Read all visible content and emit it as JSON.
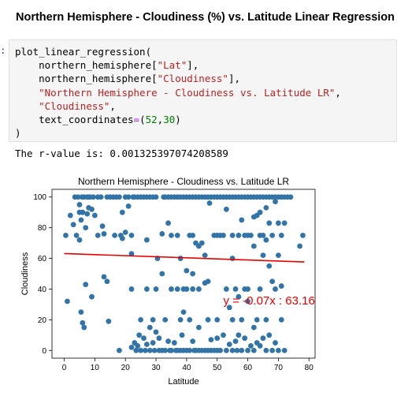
{
  "notebook": {
    "heading": "Northern Hemisphere - Cloudiness (%) vs. Latitude Linear Regression",
    "prompt": ":",
    "code": {
      "fn_call": "plot_linear_regression(",
      "arg1_prefix": "northern_hemisphere[",
      "arg1_key": "\"Lat\"",
      "arg1_suffix": "],",
      "arg2_prefix": "northern_hemisphere[",
      "arg2_key": "\"Cloudiness\"",
      "arg2_suffix": "],",
      "arg3": "\"Northern Hemisphere - Cloudiness vs. Latitude LR\"",
      "arg3_suffix": ",",
      "arg4": "\"Cloudiness\"",
      "arg4_suffix": ",",
      "arg5_name": "text_coordinates",
      "arg5_eq": "=",
      "arg5_open": "(",
      "arg5_x": "52",
      "arg5_comma": ",",
      "arg5_y": "30",
      "arg5_close": ")",
      "close": ")"
    },
    "output": "The r-value is: 0.001325397074208589"
  },
  "colors": {
    "points": "#3274a8",
    "regression": "#e60000",
    "annotation": "#e60000",
    "code_string": "#BA2121",
    "code_number": "#008000"
  },
  "chart_data": {
    "type": "scatter",
    "title": "Northern Hemisphere - Cloudiness vs. Latitude LR",
    "xlabel": "Latitude",
    "ylabel": "Cloudiness",
    "xlim": [
      -4,
      82
    ],
    "ylim": [
      -5,
      105
    ],
    "xticks": [
      0,
      10,
      20,
      30,
      40,
      50,
      60,
      70,
      80
    ],
    "yticks": [
      0,
      20,
      40,
      60,
      80,
      100
    ],
    "grid": false,
    "regression": {
      "slope": -0.07,
      "intercept": 63.16,
      "x_start": 0,
      "x_end": 78.5
    },
    "annotation": {
      "text": "y = -0.07x : 63.16",
      "x": 52,
      "y": 30
    },
    "points": [
      [
        0.5,
        75
      ],
      [
        1,
        32
      ],
      [
        2,
        88
      ],
      [
        3,
        82
      ],
      [
        3.5,
        100
      ],
      [
        4,
        75
      ],
      [
        4.5,
        100
      ],
      [
        5,
        95
      ],
      [
        5,
        90
      ],
      [
        5,
        72
      ],
      [
        5.5,
        85
      ],
      [
        5.5,
        25
      ],
      [
        5.8,
        100
      ],
      [
        6,
        90
      ],
      [
        6,
        18
      ],
      [
        6.5,
        15
      ],
      [
        6.5,
        100
      ],
      [
        7,
        80
      ],
      [
        7,
        43
      ],
      [
        7.5,
        100
      ],
      [
        7.5,
        89
      ],
      [
        8,
        100
      ],
      [
        8,
        93
      ],
      [
        8.5,
        100
      ],
      [
        9,
        92
      ],
      [
        9,
        35
      ],
      [
        9.5,
        100
      ],
      [
        10,
        88
      ],
      [
        11,
        75
      ],
      [
        11,
        100
      ],
      [
        12,
        100
      ],
      [
        12.5,
        81
      ],
      [
        13,
        76
      ],
      [
        13,
        48
      ],
      [
        14,
        100
      ],
      [
        14,
        45
      ],
      [
        14.5,
        19
      ],
      [
        15,
        100
      ],
      [
        16,
        100
      ],
      [
        16.5,
        75
      ],
      [
        17,
        100
      ],
      [
        18,
        100
      ],
      [
        18,
        0
      ],
      [
        18.5,
        75
      ],
      [
        19,
        73
      ],
      [
        19,
        90
      ],
      [
        20,
        100
      ],
      [
        20,
        77
      ],
      [
        21,
        100
      ],
      [
        21,
        94
      ],
      [
        22,
        75
      ],
      [
        22,
        63
      ],
      [
        22,
        40
      ],
      [
        22,
        2
      ],
      [
        22.5,
        100
      ],
      [
        23,
        100
      ],
      [
        23,
        5
      ],
      [
        23.5,
        0
      ],
      [
        24,
        3
      ],
      [
        24,
        100
      ],
      [
        24.5,
        10
      ],
      [
        25,
        100
      ],
      [
        25,
        20
      ],
      [
        25,
        0
      ],
      [
        26,
        100
      ],
      [
        26,
        8
      ],
      [
        26.5,
        0
      ],
      [
        27,
        72
      ],
      [
        27,
        40
      ],
      [
        27,
        100
      ],
      [
        27,
        4
      ],
      [
        28,
        100
      ],
      [
        28,
        15
      ],
      [
        28,
        0
      ],
      [
        29,
        100
      ],
      [
        29,
        20
      ],
      [
        29,
        5
      ],
      [
        29.5,
        0
      ],
      [
        30,
        40
      ],
      [
        30,
        100
      ],
      [
        30,
        12
      ],
      [
        30.5,
        60
      ],
      [
        31,
        0
      ],
      [
        31,
        8
      ],
      [
        32,
        76
      ],
      [
        32,
        50
      ],
      [
        32,
        0
      ],
      [
        32.5,
        100
      ],
      [
        33,
        100
      ],
      [
        33,
        20
      ],
      [
        33,
        0
      ],
      [
        34,
        100
      ],
      [
        34,
        83
      ],
      [
        34,
        6
      ],
      [
        34.5,
        0
      ],
      [
        35,
        100
      ],
      [
        35,
        75
      ],
      [
        35,
        40
      ],
      [
        35,
        0
      ],
      [
        36,
        100
      ],
      [
        36,
        5
      ],
      [
        36.5,
        0
      ],
      [
        37,
        100
      ],
      [
        37,
        100
      ],
      [
        37,
        75
      ],
      [
        37,
        40
      ],
      [
        37,
        0
      ],
      [
        38,
        100
      ],
      [
        38,
        60
      ],
      [
        38,
        20
      ],
      [
        38,
        0
      ],
      [
        38.5,
        10
      ],
      [
        39,
        100
      ],
      [
        39,
        40
      ],
      [
        39,
        25
      ],
      [
        39,
        0
      ],
      [
        40,
        100
      ],
      [
        40,
        52
      ],
      [
        40,
        40
      ],
      [
        40,
        0
      ],
      [
        41,
        100
      ],
      [
        41,
        75
      ],
      [
        41,
        20
      ],
      [
        41,
        0
      ],
      [
        42,
        100
      ],
      [
        42,
        75
      ],
      [
        42,
        50
      ],
      [
        42,
        40
      ],
      [
        42,
        6
      ],
      [
        42.5,
        0
      ],
      [
        43,
        100
      ],
      [
        43,
        70
      ],
      [
        43,
        0
      ],
      [
        44,
        100
      ],
      [
        44,
        68
      ],
      [
        44,
        40
      ],
      [
        44,
        15
      ],
      [
        44,
        0
      ],
      [
        45,
        100
      ],
      [
        45,
        70
      ],
      [
        45,
        0
      ],
      [
        46,
        100
      ],
      [
        46,
        62
      ],
      [
        46,
        44
      ],
      [
        46,
        0
      ],
      [
        47,
        100
      ],
      [
        47,
        45
      ],
      [
        47,
        20
      ],
      [
        47,
        0
      ],
      [
        47.5,
        96
      ],
      [
        48,
        100
      ],
      [
        48,
        7
      ],
      [
        48,
        0
      ],
      [
        49,
        100
      ],
      [
        49,
        75
      ],
      [
        49,
        0
      ],
      [
        50,
        100
      ],
      [
        50,
        75
      ],
      [
        50,
        20
      ],
      [
        50,
        8
      ],
      [
        50,
        0
      ],
      [
        51,
        100
      ],
      [
        51,
        75
      ],
      [
        51,
        0
      ],
      [
        52,
        100
      ],
      [
        52,
        75
      ],
      [
        52,
        10
      ],
      [
        53,
        100
      ],
      [
        53,
        92
      ],
      [
        53,
        40
      ],
      [
        53,
        0
      ],
      [
        54,
        100
      ],
      [
        54,
        28
      ],
      [
        54,
        4
      ],
      [
        55,
        100
      ],
      [
        55,
        75
      ],
      [
        55,
        60
      ],
      [
        55,
        20
      ],
      [
        55,
        0
      ],
      [
        56,
        100
      ],
      [
        56,
        40
      ],
      [
        56,
        6
      ],
      [
        56.5,
        0
      ],
      [
        57,
        100
      ],
      [
        57,
        75
      ],
      [
        57,
        35
      ],
      [
        57,
        10
      ],
      [
        58,
        100
      ],
      [
        58,
        85
      ],
      [
        58,
        20
      ],
      [
        58,
        0
      ],
      [
        59,
        100
      ],
      [
        59,
        75
      ],
      [
        59,
        40
      ],
      [
        59,
        8
      ],
      [
        60,
        100
      ],
      [
        60,
        75
      ],
      [
        60,
        40
      ],
      [
        60,
        32
      ],
      [
        60,
        0
      ],
      [
        61,
        100
      ],
      [
        61,
        75
      ],
      [
        61,
        3
      ],
      [
        62,
        100
      ],
      [
        62,
        87
      ],
      [
        62,
        68
      ],
      [
        62,
        15
      ],
      [
        62,
        0
      ],
      [
        63,
        100
      ],
      [
        63,
        88
      ],
      [
        63,
        20
      ],
      [
        63,
        5
      ],
      [
        64,
        100
      ],
      [
        64,
        90
      ],
      [
        64,
        75
      ],
      [
        64,
        40
      ],
      [
        64,
        3
      ],
      [
        65,
        100
      ],
      [
        65,
        75
      ],
      [
        65,
        62
      ],
      [
        65,
        8
      ],
      [
        66,
        100
      ],
      [
        66,
        93
      ],
      [
        66,
        72
      ],
      [
        66,
        20
      ],
      [
        66,
        0
      ],
      [
        67,
        100
      ],
      [
        67,
        83
      ],
      [
        67,
        55
      ],
      [
        67,
        10
      ],
      [
        68,
        100
      ],
      [
        68,
        75
      ],
      [
        68,
        45
      ],
      [
        68,
        0
      ],
      [
        69,
        100
      ],
      [
        69,
        97
      ],
      [
        69,
        40
      ],
      [
        69,
        5
      ],
      [
        70,
        100
      ],
      [
        70,
        83
      ],
      [
        70,
        62
      ],
      [
        70,
        0
      ],
      [
        71,
        100
      ],
      [
        71,
        75
      ],
      [
        71,
        42
      ],
      [
        71,
        20
      ],
      [
        72,
        100
      ],
      [
        72,
        83
      ],
      [
        72,
        0
      ],
      [
        73,
        100
      ],
      [
        74,
        100
      ],
      [
        77,
        68
      ],
      [
        78,
        75
      ]
    ]
  }
}
